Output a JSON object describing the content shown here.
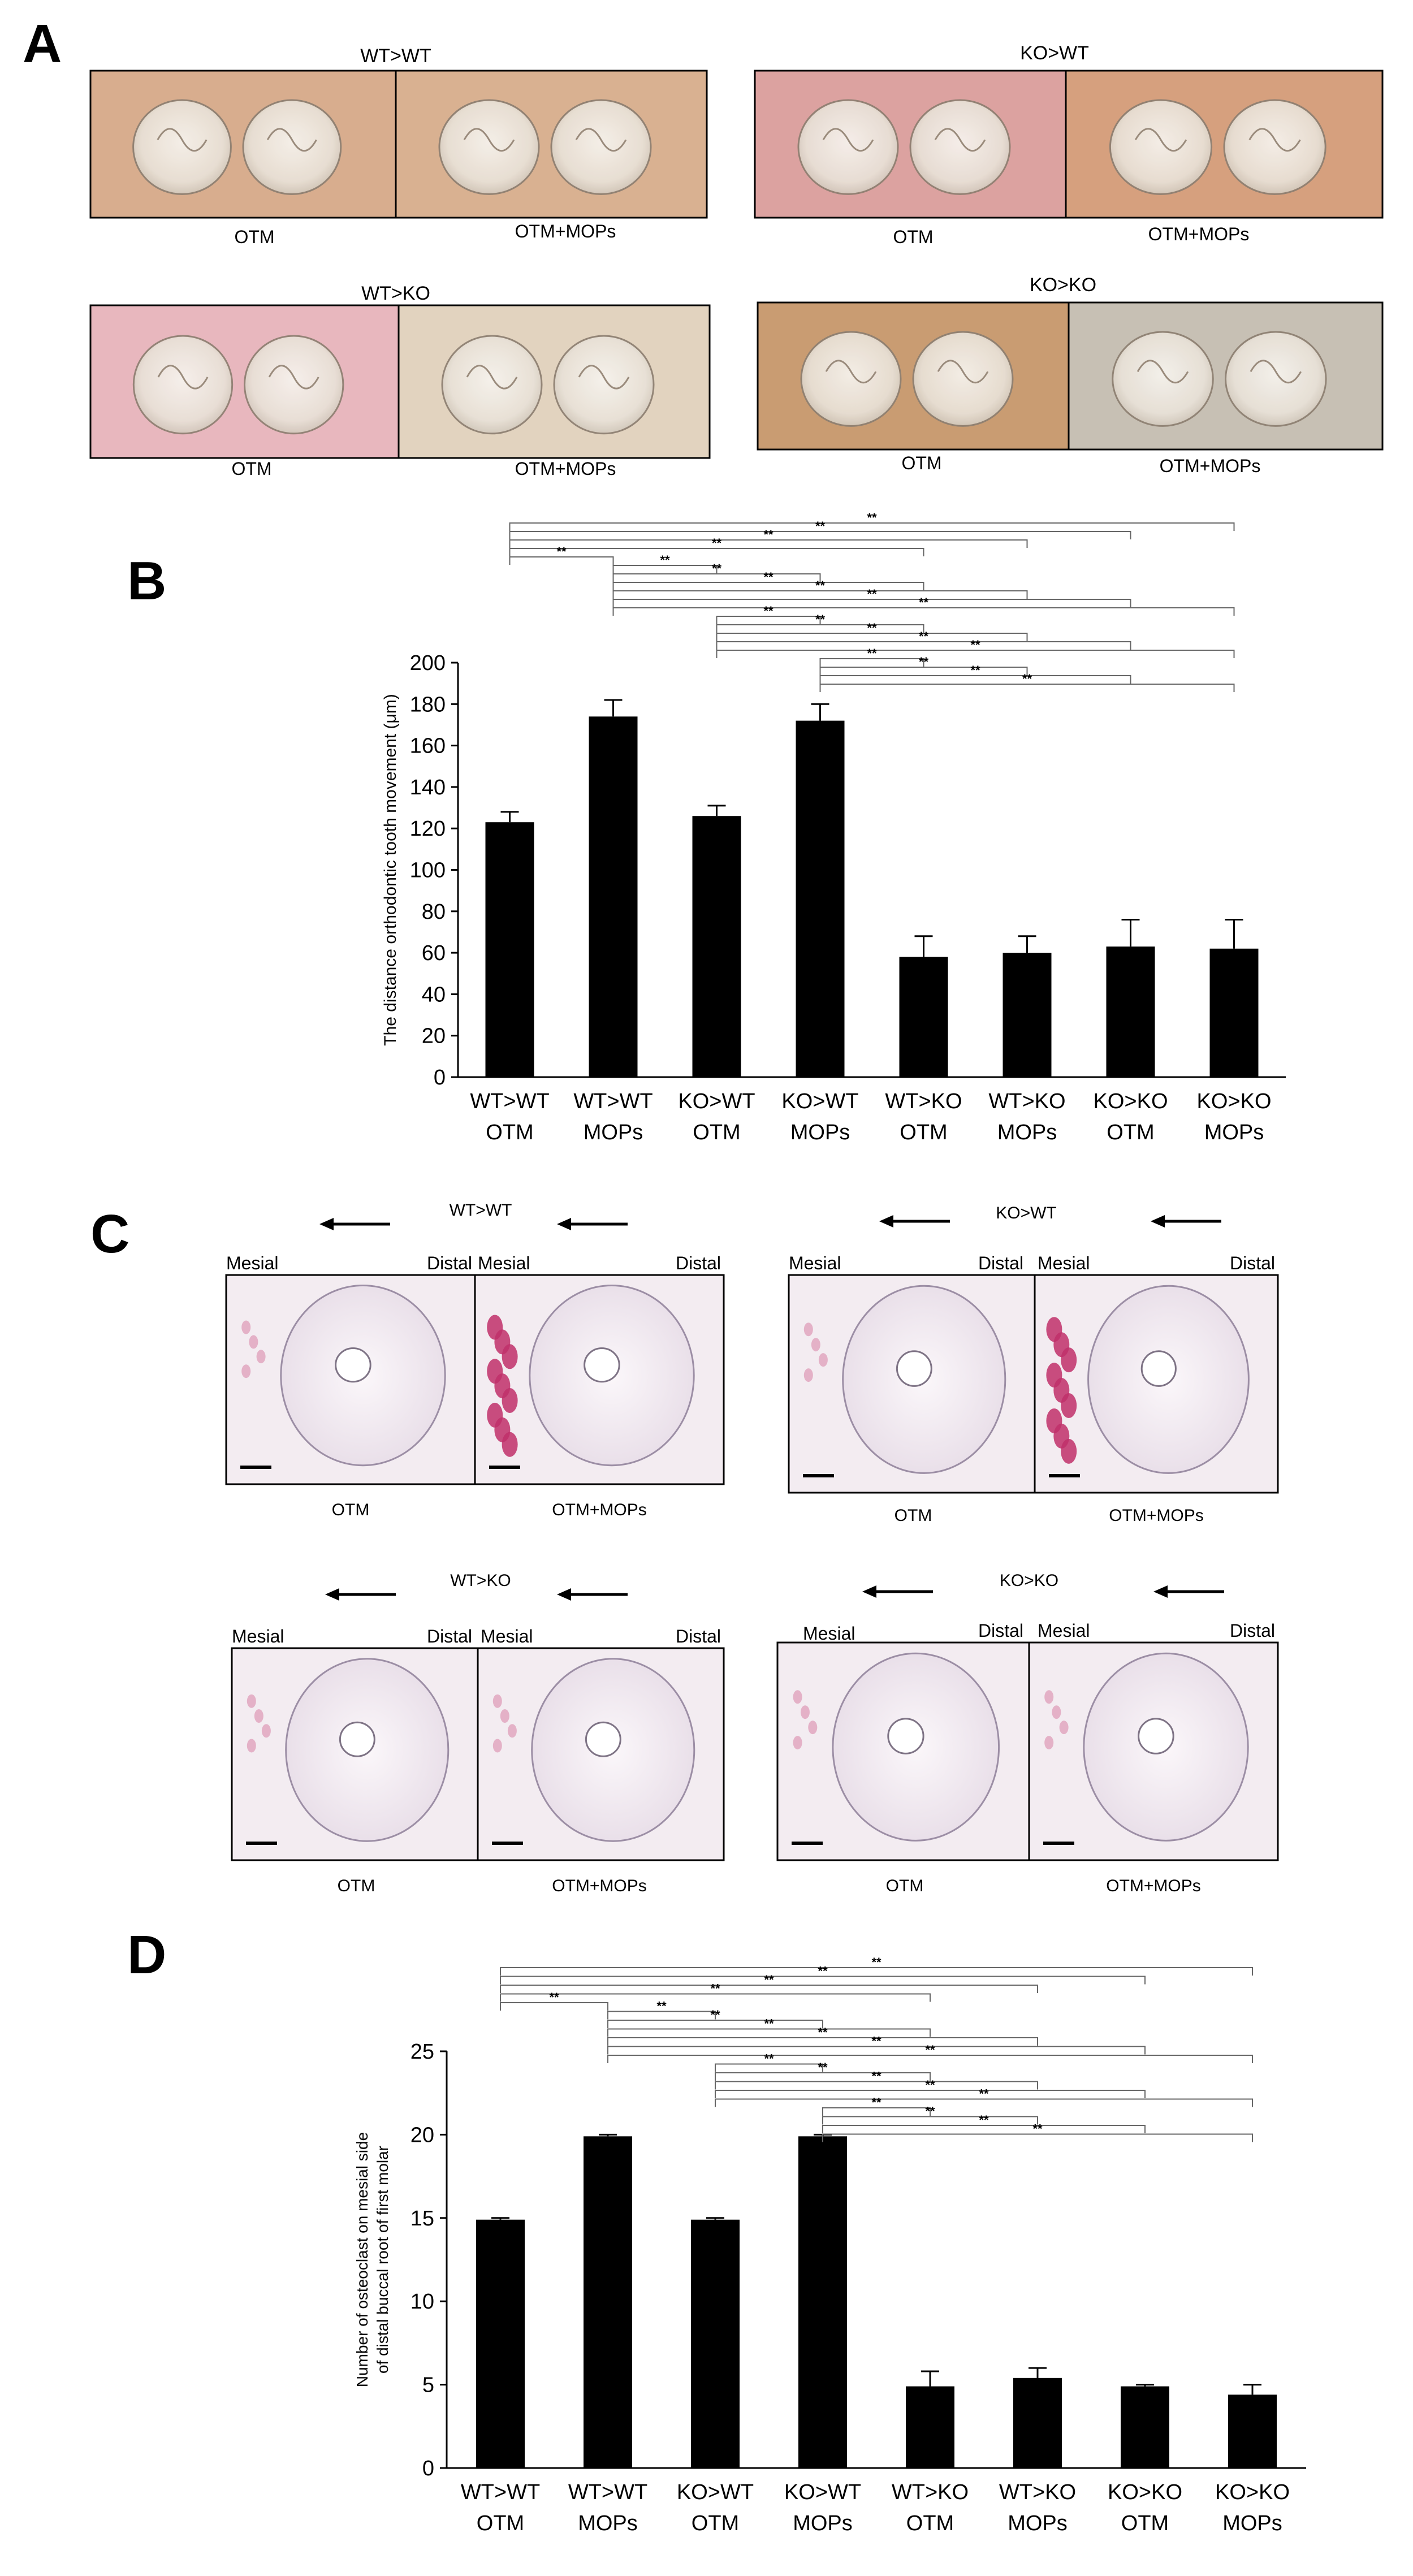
{
  "panel_labels": {
    "a": "A",
    "b": "B",
    "c": "C",
    "d": "D"
  },
  "panel_a": {
    "groups": [
      {
        "title": "WT>WT",
        "left": "OTM",
        "right": "OTM+MOPs",
        "tint_left": "#d8ad8e",
        "tint_right": "#d9b191"
      },
      {
        "title": "KO>WT",
        "left": "OTM",
        "right": "OTM+MOPs",
        "tint_left": "#dca2a0",
        "tint_right": "#d6a07e"
      },
      {
        "title": "WT>KO",
        "left": "OTM",
        "right": "OTM+MOPs",
        "tint_left": "#e8b7be",
        "tint_right": "#e2d3bf"
      },
      {
        "title": "KO>KO",
        "left": "OTM",
        "right": "OTM+MOPs",
        "tint_left": "#c99c72",
        "tint_right": "#c7c0b4"
      }
    ]
  },
  "panel_c": {
    "groups": [
      {
        "title": "WT>WT",
        "left": "OTM",
        "right": "OTM+MOPs"
      },
      {
        "title": "KO>WT",
        "left": "OTM",
        "right": "OTM+MOPs"
      },
      {
        "title": "WT>KO",
        "left": "OTM",
        "right": "OTM+MOPs"
      },
      {
        "title": "KO>KO",
        "left": "OTM",
        "right": "OTM+MOPs"
      }
    ],
    "mesial": "Mesial",
    "distal": "Distal"
  },
  "chart_data": [
    {
      "type": "bar",
      "panel": "B",
      "categories": [
        [
          "WT>WT",
          "OTM"
        ],
        [
          "WT>WT",
          "MOPs"
        ],
        [
          "KO>WT",
          "OTM"
        ],
        [
          "KO>WT",
          "MOPs"
        ],
        [
          "WT>KO",
          "OTM"
        ],
        [
          "WT>KO",
          "MOPs"
        ],
        [
          "KO>KO",
          "OTM"
        ],
        [
          "KO>KO",
          "MOPs"
        ]
      ],
      "values": [
        123,
        174,
        126,
        172,
        58,
        60,
        63,
        62
      ],
      "errors": [
        5,
        8,
        5,
        8,
        10,
        8,
        13,
        14
      ],
      "ylabel": "The distance orthodontic tooth movement (μm)",
      "ylim": [
        0,
        200
      ],
      "yticks": [
        0,
        20,
        40,
        60,
        80,
        100,
        120,
        140,
        160,
        180,
        200
      ],
      "significance": {
        "label": "**",
        "pairs": [
          [
            0,
            7
          ],
          [
            0,
            6
          ],
          [
            0,
            5
          ],
          [
            0,
            4
          ],
          [
            0,
            1
          ],
          [
            1,
            2
          ],
          [
            1,
            3
          ],
          [
            1,
            4
          ],
          [
            1,
            5
          ],
          [
            1,
            6
          ],
          [
            1,
            7
          ],
          [
            2,
            3
          ],
          [
            2,
            4
          ],
          [
            2,
            5
          ],
          [
            2,
            6
          ],
          [
            2,
            7
          ],
          [
            3,
            4
          ],
          [
            3,
            5
          ],
          [
            3,
            6
          ],
          [
            3,
            7
          ]
        ]
      }
    },
    {
      "type": "bar",
      "panel": "D",
      "categories": [
        [
          "WT>WT",
          "OTM"
        ],
        [
          "WT>WT",
          "MOPs"
        ],
        [
          "KO>WT",
          "OTM"
        ],
        [
          "KO>WT",
          "MOPs"
        ],
        [
          "WT>KO",
          "OTM"
        ],
        [
          "WT>KO",
          "MOPs"
        ],
        [
          "KO>KO",
          "OTM"
        ],
        [
          "KO>KO",
          "MOPs"
        ]
      ],
      "values": [
        14.9,
        19.9,
        14.9,
        19.9,
        4.9,
        5.4,
        4.9,
        4.4
      ],
      "errors": [
        0.1,
        0.1,
        0.1,
        0.1,
        0.9,
        0.6,
        0.1,
        0.6
      ],
      "ylabel_line1": "Number of osteoclast on mesial side",
      "ylabel_line2": "of distal buccal root of first molar",
      "ylim": [
        0,
        25
      ],
      "yticks": [
        0,
        5,
        10,
        15,
        20,
        25
      ],
      "significance": {
        "label": "**",
        "pairs": [
          [
            0,
            7
          ],
          [
            0,
            6
          ],
          [
            0,
            5
          ],
          [
            0,
            4
          ],
          [
            0,
            1
          ],
          [
            1,
            2
          ],
          [
            1,
            3
          ],
          [
            1,
            4
          ],
          [
            1,
            5
          ],
          [
            1,
            6
          ],
          [
            1,
            7
          ],
          [
            2,
            3
          ],
          [
            2,
            4
          ],
          [
            2,
            5
          ],
          [
            2,
            6
          ],
          [
            2,
            7
          ],
          [
            3,
            4
          ],
          [
            3,
            5
          ],
          [
            3,
            6
          ],
          [
            3,
            7
          ]
        ]
      }
    }
  ]
}
